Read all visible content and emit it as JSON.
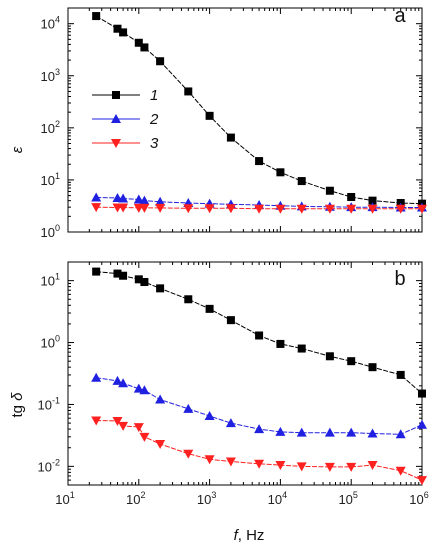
{
  "chart_data": [
    {
      "type": "line",
      "panel_label": "a",
      "ylabel": "ε",
      "xscale": "log",
      "yscale": "log",
      "xlim": [
        10,
        1000000
      ],
      "ylim": [
        1,
        20000
      ],
      "x_ticks": [
        {
          "base": "10",
          "exp": "1"
        },
        {
          "base": "10",
          "exp": "2"
        },
        {
          "base": "10",
          "exp": "3"
        },
        {
          "base": "10",
          "exp": "4"
        },
        {
          "base": "10",
          "exp": "5"
        },
        {
          "base": "10",
          "exp": "6"
        }
      ],
      "y_ticks": [
        {
          "value": 1,
          "base": "10",
          "exp": "0"
        },
        {
          "value": 10,
          "base": "10",
          "exp": "1"
        },
        {
          "value": 100,
          "base": "10",
          "exp": "2"
        },
        {
          "value": 1000,
          "base": "10",
          "exp": "3"
        },
        {
          "value": 10000,
          "base": "10",
          "exp": "4"
        }
      ],
      "legend_position": "upper-left",
      "series": [
        {
          "name": "1",
          "color": "#000000",
          "marker": "square",
          "x": [
            25,
            50,
            60,
            100,
            120,
            200,
            500,
            1000,
            2000,
            5000,
            10000,
            20000,
            50000,
            100000,
            200000,
            500000,
            1000000
          ],
          "y": [
            14000,
            8000,
            6800,
            4300,
            3500,
            1900,
            500,
            170,
            65,
            23,
            14,
            9.5,
            6.2,
            4.7,
            4.0,
            3.6,
            3.5
          ]
        },
        {
          "name": "2",
          "color": "#2020e0",
          "marker": "triangle-up",
          "x": [
            25,
            50,
            60,
            100,
            120,
            200,
            500,
            1000,
            2000,
            5000,
            10000,
            20000,
            50000,
            100000,
            200000,
            500000,
            1000000
          ],
          "y": [
            4.6,
            4.5,
            4.4,
            4.2,
            4.0,
            3.8,
            3.6,
            3.5,
            3.4,
            3.3,
            3.2,
            3.1,
            3.05,
            3.0,
            3.0,
            2.95,
            2.95
          ]
        },
        {
          "name": "3",
          "color": "#ff2020",
          "marker": "triangle-down",
          "x": [
            25,
            50,
            60,
            100,
            120,
            200,
            500,
            1000,
            2000,
            5000,
            10000,
            20000,
            50000,
            100000,
            200000,
            500000,
            1000000
          ],
          "y": [
            3.0,
            2.95,
            2.95,
            2.9,
            2.9,
            2.9,
            2.85,
            2.85,
            2.85,
            2.8,
            2.8,
            2.8,
            2.8,
            2.8,
            2.8,
            2.8,
            2.8
          ]
        }
      ]
    },
    {
      "type": "line",
      "panel_label": "b",
      "ylabel": "tg δ",
      "xlabel_italic": "f",
      "xlabel_rest": ", Hz",
      "xscale": "log",
      "yscale": "log",
      "xlim": [
        10,
        1000000
      ],
      "ylim": [
        0.005,
        20
      ],
      "x_ticks": [
        {
          "base": "10",
          "exp": "1"
        },
        {
          "base": "10",
          "exp": "2"
        },
        {
          "base": "10",
          "exp": "3"
        },
        {
          "base": "10",
          "exp": "4"
        },
        {
          "base": "10",
          "exp": "5"
        },
        {
          "base": "10",
          "exp": "6"
        }
      ],
      "y_ticks": [
        {
          "value": 0.01,
          "base": "10",
          "exp": "-2"
        },
        {
          "value": 0.1,
          "base": "10",
          "exp": "-1"
        },
        {
          "value": 1,
          "base": "10",
          "exp": "0"
        },
        {
          "value": 10,
          "base": "10",
          "exp": "1"
        }
      ],
      "series": [
        {
          "name": "1",
          "color": "#000000",
          "marker": "square",
          "x": [
            25,
            50,
            60,
            100,
            120,
            200,
            500,
            1000,
            2000,
            5000,
            10000,
            20000,
            50000,
            100000,
            200000,
            500000,
            1000000
          ],
          "y": [
            14,
            13,
            12,
            10.5,
            9.5,
            7.5,
            5.0,
            3.5,
            2.3,
            1.3,
            0.95,
            0.8,
            0.6,
            0.5,
            0.4,
            0.3,
            0.15
          ]
        },
        {
          "name": "2",
          "color": "#2020e0",
          "marker": "triangle-up",
          "x": [
            25,
            50,
            60,
            100,
            120,
            200,
            500,
            1000,
            2000,
            5000,
            10000,
            20000,
            50000,
            100000,
            200000,
            500000,
            1000000
          ],
          "y": [
            0.27,
            0.24,
            0.22,
            0.18,
            0.17,
            0.12,
            0.085,
            0.065,
            0.05,
            0.04,
            0.036,
            0.035,
            0.035,
            0.035,
            0.034,
            0.033,
            0.047
          ]
        },
        {
          "name": "3",
          "color": "#ff2020",
          "marker": "triangle-down",
          "x": [
            25,
            50,
            60,
            100,
            120,
            200,
            500,
            1000,
            2000,
            5000,
            10000,
            20000,
            50000,
            100000,
            200000,
            500000,
            1000000
          ],
          "y": [
            0.055,
            0.054,
            0.045,
            0.043,
            0.03,
            0.023,
            0.016,
            0.013,
            0.012,
            0.011,
            0.0105,
            0.01,
            0.0098,
            0.0098,
            0.0105,
            0.0085,
            0.006
          ]
        }
      ]
    }
  ]
}
